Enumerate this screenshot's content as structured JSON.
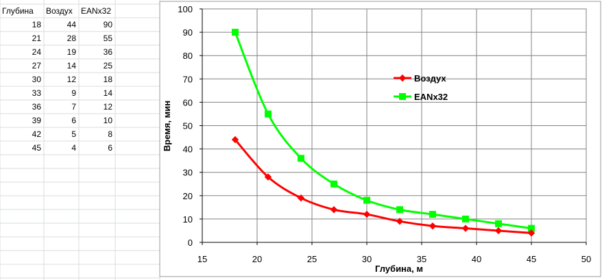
{
  "table": {
    "headers": [
      "Глубина",
      "Воздух",
      "EANx32"
    ],
    "rows": [
      [
        "18",
        "44",
        "90"
      ],
      [
        "21",
        "28",
        "55"
      ],
      [
        "24",
        "19",
        "36"
      ],
      [
        "27",
        "14",
        "25"
      ],
      [
        "30",
        "12",
        "18"
      ],
      [
        "33",
        "9",
        "14"
      ],
      [
        "36",
        "7",
        "12"
      ],
      [
        "39",
        "6",
        "10"
      ],
      [
        "42",
        "5",
        "8"
      ],
      [
        "45",
        "4",
        "6"
      ]
    ]
  },
  "chart_data": {
    "type": "line",
    "title": "",
    "xlabel": "Глубина, м",
    "ylabel": "Время, мин",
    "xlim": [
      15,
      50
    ],
    "ylim": [
      0,
      100
    ],
    "xticks": [
      15,
      20,
      25,
      30,
      35,
      40,
      45,
      50
    ],
    "yticks": [
      0,
      10,
      20,
      30,
      40,
      50,
      60,
      70,
      80,
      90,
      100
    ],
    "grid": true,
    "legend_position": "top-right",
    "x": [
      18,
      21,
      24,
      27,
      30,
      33,
      36,
      39,
      42,
      45
    ],
    "series": [
      {
        "name": "Воздух",
        "values": [
          44,
          28,
          19,
          14,
          12,
          9,
          7,
          6,
          5,
          4
        ],
        "color": "#ff0000",
        "marker": "diamond"
      },
      {
        "name": "EANx32",
        "values": [
          90,
          55,
          36,
          25,
          18,
          14,
          12,
          10,
          8,
          6
        ],
        "color": "#00ff00",
        "marker": "square"
      }
    ]
  }
}
